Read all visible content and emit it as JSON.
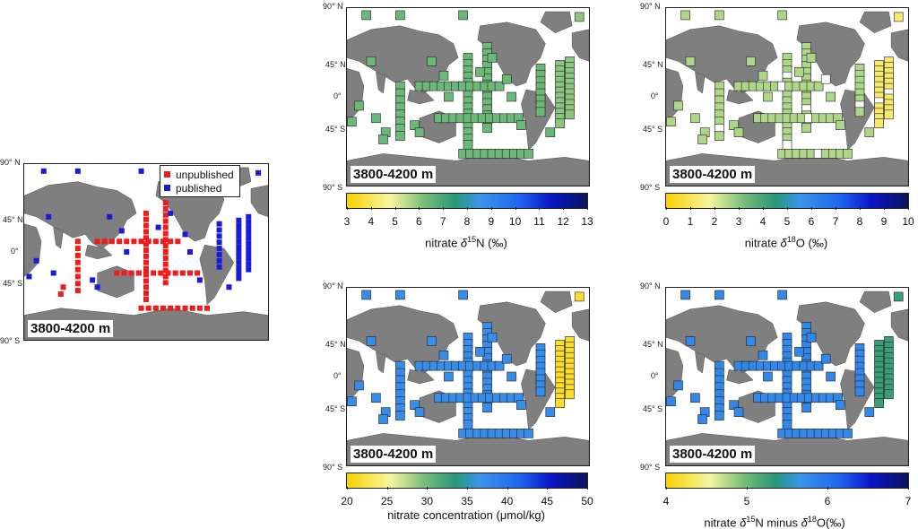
{
  "depth_label": "3800-4200 m",
  "lat_labels": {
    "n90": "90° N",
    "n45": "45° N",
    "eq": "0°",
    "s45": "45° S",
    "s90": "90° S"
  },
  "legend": {
    "unpublished": "unpublished",
    "published": "published"
  },
  "colors": {
    "unpublished": "#ee1c1c",
    "published": "#1a1adb",
    "land": "#7f7f7f"
  },
  "colorbars": {
    "d15n": {
      "ticks": [
        "3",
        "4",
        "5",
        "6",
        "7",
        "8",
        "9",
        "10",
        "11",
        "12",
        "13"
      ],
      "label_prefix": "nitrate ",
      "label_sup": "15",
      "label_mid": "N (‰)",
      "label_greek": "δ",
      "min": 3,
      "max": 13
    },
    "d18o": {
      "ticks": [
        "0",
        "1",
        "2",
        "3",
        "4",
        "5",
        "6",
        "7",
        "8",
        "9",
        "10"
      ],
      "label_prefix": "nitrate ",
      "label_sup": "18",
      "label_mid": "O (‰)",
      "label_greek": "δ",
      "min": 0,
      "max": 10
    },
    "conc": {
      "ticks": [
        "20",
        "25",
        "30",
        "35",
        "40",
        "45",
        "50"
      ],
      "label": "nitrate concentration (μmol/kg)",
      "min": 20,
      "max": 50
    },
    "diff": {
      "ticks": [
        "4",
        "5",
        "6",
        "7"
      ],
      "label_prefix": "nitrate ",
      "label_greek": "δ",
      "label_sup": "15",
      "label_mid": "N minus ",
      "label_greek2": "δ",
      "label_sup2": "18",
      "label_end": "O(‰)",
      "min": 4,
      "max": 7
    }
  }
}
